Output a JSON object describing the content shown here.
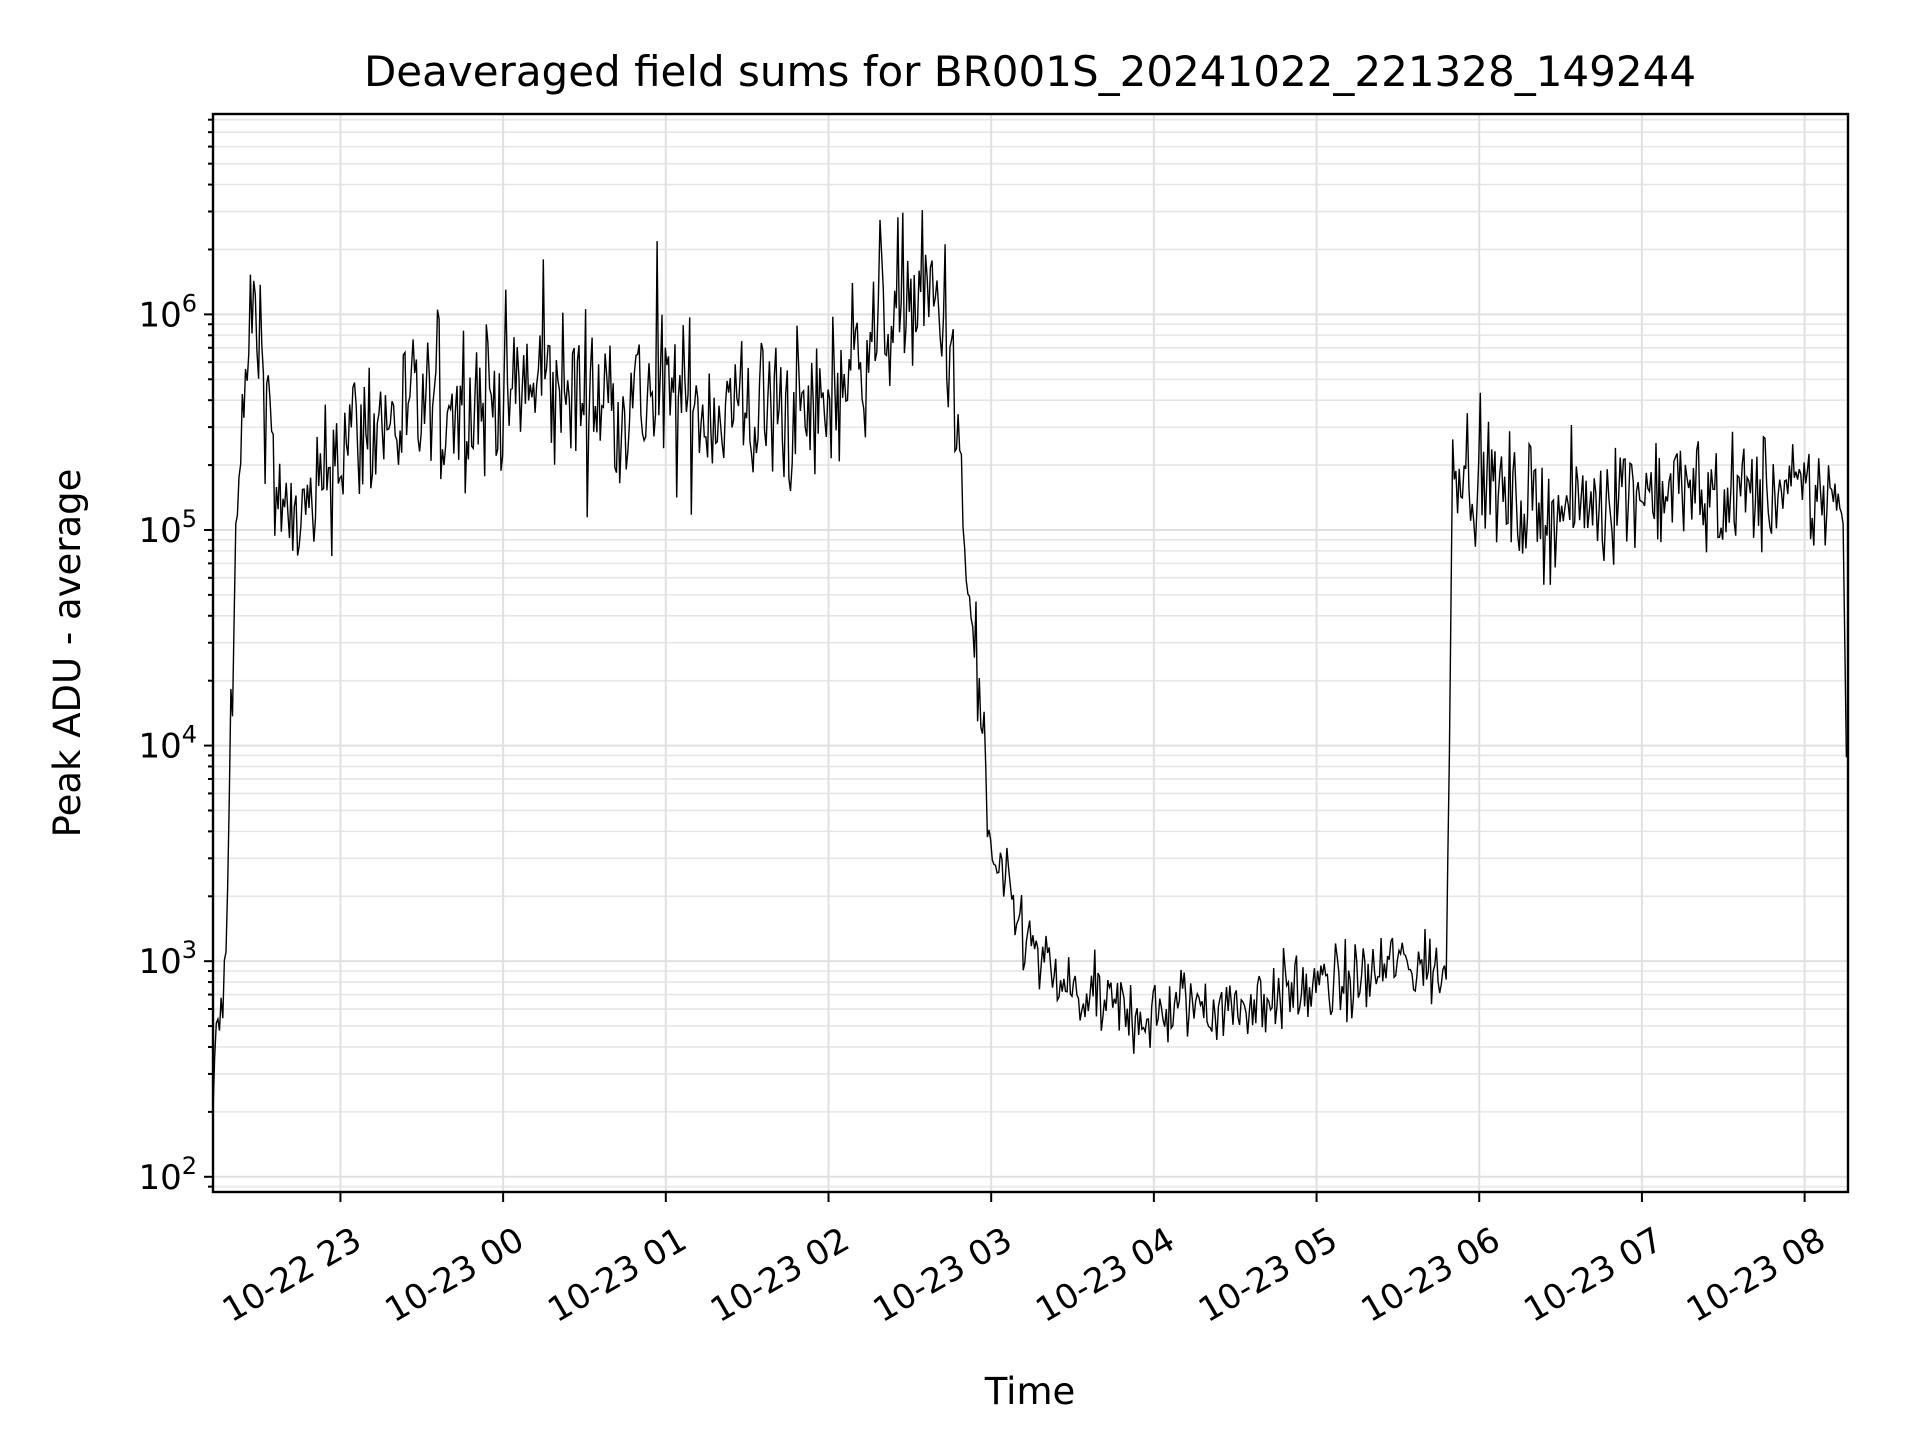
{
  "chart_data": {
    "type": "line",
    "title": "Deaveraged field sums for BR001S_20241022_221328_149244",
    "xlabel": "Time",
    "ylabel": "Peak ADU - average",
    "y_scale": "log",
    "ylim": [
      85,
      8500000
    ],
    "xlim": [
      "2024-10-22 22:13",
      "2024-10-23 08:16"
    ],
    "x_ticks": [
      "10-22 23",
      "10-23 00",
      "10-23 01",
      "10-23 02",
      "10-23 03",
      "10-23 04",
      "10-23 05",
      "10-23 06",
      "10-23 07",
      "10-23 08"
    ],
    "y_ticks": [
      {
        "value": 100,
        "base": "10",
        "exp": "2"
      },
      {
        "value": 1000,
        "base": "10",
        "exp": "3"
      },
      {
        "value": 10000,
        "base": "10",
        "exp": "4"
      },
      {
        "value": 100000,
        "base": "10",
        "exp": "5"
      },
      {
        "value": 1000000,
        "base": "10",
        "exp": "6"
      }
    ],
    "grid": "major+minor",
    "legend": "none",
    "line_color": "#000000",
    "series": [
      {
        "x": [
          "2024-10-22 22:13",
          "2024-10-22 22:14",
          "2024-10-22 22:16",
          "2024-10-22 22:18",
          "2024-10-22 22:20",
          "2024-10-22 22:23",
          "2024-10-22 22:27",
          "2024-10-22 22:30",
          "2024-10-22 22:32",
          "2024-10-22 22:34",
          "2024-10-22 22:35",
          "2024-10-22 22:37",
          "2024-10-22 22:40",
          "2024-10-22 22:45",
          "2024-10-22 22:50",
          "2024-10-22 22:55",
          "2024-10-22 23:00",
          "2024-10-22 23:10",
          "2024-10-22 23:20",
          "2024-10-22 23:30",
          "2024-10-22 23:40",
          "2024-10-22 23:50",
          "2024-10-23 00:00",
          "2024-10-23 00:15",
          "2024-10-23 00:30",
          "2024-10-23 00:45",
          "2024-10-23 01:00",
          "2024-10-23 01:15",
          "2024-10-23 01:30",
          "2024-10-23 01:45",
          "2024-10-23 01:55",
          "2024-10-23 02:05",
          "2024-10-23 02:12",
          "2024-10-23 02:20",
          "2024-10-23 02:30",
          "2024-10-23 02:40",
          "2024-10-23 02:45",
          "2024-10-23 02:50",
          "2024-10-23 02:55",
          "2024-10-23 03:00",
          "2024-10-23 03:10",
          "2024-10-23 03:20",
          "2024-10-23 03:30",
          "2024-10-23 03:45",
          "2024-10-23 04:00",
          "2024-10-23 04:15",
          "2024-10-23 04:30",
          "2024-10-23 04:45",
          "2024-10-23 05:00",
          "2024-10-23 05:15",
          "2024-10-23 05:30",
          "2024-10-23 05:45",
          "2024-10-23 05:48",
          "2024-10-23 05:50",
          "2024-10-23 06:00",
          "2024-10-23 06:15",
          "2024-10-23 06:30",
          "2024-10-23 06:45",
          "2024-10-23 07:00",
          "2024-10-23 07:15",
          "2024-10-23 07:30",
          "2024-10-23 07:45",
          "2024-10-23 08:00",
          "2024-10-23 08:10",
          "2024-10-23 08:14",
          "2024-10-23 08:16"
        ],
        "y": [
          180,
          500,
          550,
          1000,
          30000,
          200000,
          1000000,
          850000,
          550000,
          400000,
          200000,
          140000,
          100000,
          120000,
          110000,
          200000,
          250000,
          300000,
          320000,
          350000,
          380000,
          420000,
          430000,
          450000,
          420000,
          410000,
          400000,
          370000,
          350000,
          350000,
          330000,
          500000,
          700000,
          1000000,
          1200000,
          1100000,
          800000,
          80000,
          20000,
          3000,
          1500,
          900,
          700,
          600,
          550,
          650,
          600,
          700,
          750,
          800,
          1000,
          900,
          800,
          250000,
          170000,
          130000,
          120000,
          140000,
          160000,
          150000,
          140000,
          150000,
          140000,
          150000,
          100000,
          10000
        ]
      }
    ]
  }
}
